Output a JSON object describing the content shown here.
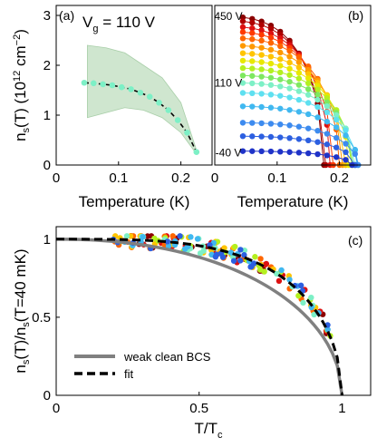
{
  "chart_data": [
    {
      "panel_label": "(a)",
      "type": "line",
      "annotation": {
        "prefix": "V",
        "sub": "g",
        "suffix": " = 110 V"
      },
      "xlabel": "Temperature (K)",
      "ylabel": {
        "main": "n",
        "sub": "s",
        "mid": "(T) (10",
        "sup": "12",
        "end": " cm",
        "sup2": "−2",
        "close": ")"
      },
      "xlim": [
        0,
        0.25
      ],
      "ylim": [
        0,
        3.2
      ],
      "xticks": [
        0,
        0.1,
        0.2
      ],
      "xtick_labels": [
        "0",
        "0.1",
        "0.2"
      ],
      "yticks": [
        0,
        1,
        2,
        3
      ],
      "ytick_labels": [
        "0",
        "1",
        "2",
        "3"
      ],
      "band": {
        "x": [
          0.05,
          0.08,
          0.11,
          0.14,
          0.17,
          0.2,
          0.225
        ],
        "upper": [
          2.4,
          2.35,
          2.25,
          2.0,
          1.75,
          1.25,
          0.3
        ],
        "lower": [
          0.95,
          1.05,
          1.15,
          1.1,
          0.95,
          0.65,
          0.22
        ],
        "color": "#cfe6cf"
      },
      "series": [
        {
          "x": [
            0.045,
            0.06,
            0.075,
            0.09,
            0.105,
            0.12,
            0.135,
            0.15,
            0.165,
            0.18,
            0.195,
            0.21,
            0.225
          ],
          "y": [
            1.65,
            1.64,
            1.62,
            1.6,
            1.56,
            1.52,
            1.45,
            1.37,
            1.25,
            1.1,
            0.9,
            0.65,
            0.26
          ],
          "color": "#7df0c6"
        }
      ],
      "fit": {
        "color": "#000000",
        "style": "dashed"
      }
    },
    {
      "panel_label": "(b)",
      "type": "line",
      "xlabel": "Temperature (K)",
      "xlim": [
        0,
        0.25
      ],
      "ylim": [
        0,
        3.2
      ],
      "xticks": [
        0,
        0.1,
        0.2
      ],
      "xtick_labels": [
        "0",
        "0.1",
        "0.2"
      ],
      "gate_labels": [
        {
          "text": "450 V",
          "y": 2.98
        },
        {
          "text": "110 V",
          "y": 1.65
        },
        {
          "text": "-40 V",
          "y": 0.25
        }
      ],
      "series": [
        {
          "color": "#8b0000",
          "y0": 2.98,
          "tc": 0.175
        },
        {
          "color": "#b00000",
          "y0": 2.9,
          "tc": 0.178
        },
        {
          "color": "#dd1010",
          "y0": 2.78,
          "tc": 0.185
        },
        {
          "color": "#ff3a00",
          "y0": 2.68,
          "tc": 0.19
        },
        {
          "color": "#ff6600",
          "y0": 2.55,
          "tc": 0.2
        },
        {
          "color": "#ff9900",
          "y0": 2.4,
          "tc": 0.205
        },
        {
          "color": "#ffc400",
          "y0": 2.25,
          "tc": 0.21
        },
        {
          "color": "#e8e800",
          "y0": 2.1,
          "tc": 0.215
        },
        {
          "color": "#b4f020",
          "y0": 1.95,
          "tc": 0.22
        },
        {
          "color": "#7ee860",
          "y0": 1.8,
          "tc": 0.222
        },
        {
          "color": "#7df0c6",
          "y0": 1.65,
          "tc": 0.225
        },
        {
          "color": "#5ee0f0",
          "y0": 1.45,
          "tc": 0.228
        },
        {
          "color": "#40b8f0",
          "y0": 1.18,
          "tc": 0.23
        },
        {
          "color": "#3d8bef",
          "y0": 0.85,
          "tc": 0.23
        },
        {
          "color": "#2c5fe0",
          "y0": 0.58,
          "tc": 0.225
        },
        {
          "color": "#1f33c8",
          "y0": 0.28,
          "tc": 0.22
        }
      ],
      "x_samples": [
        0.045,
        0.06,
        0.075,
        0.09,
        0.105,
        0.12,
        0.135,
        0.15,
        0.165,
        0.18,
        0.195,
        0.21,
        0.225
      ]
    },
    {
      "panel_label": "(c)",
      "type": "scatter",
      "xlabel": {
        "main": "T/T",
        "sub": "c"
      },
      "ylabel": {
        "a": "n",
        "asub": "s",
        "b": "(T)/n",
        "bsub": "s",
        "c": "(T=40 mK)"
      },
      "xlim": [
        0,
        1.1
      ],
      "ylim": [
        0,
        1.08
      ],
      "xticks": [
        0,
        0.5,
        1
      ],
      "xtick_labels": [
        "0",
        "0.5",
        "1"
      ],
      "yticks": [
        0,
        0.5,
        1
      ],
      "ytick_labels": [
        "0",
        "0.5",
        "1"
      ],
      "legend": {
        "position": "bottom-left",
        "entries": [
          {
            "label": "weak clean BCS",
            "color": "#808080",
            "style": "solid"
          },
          {
            "label": "fit",
            "color": "#000000",
            "style": "dashed"
          }
        ]
      },
      "scatter_colors": [
        "#8b0000",
        "#dd1010",
        "#ff6600",
        "#ffc400",
        "#b4f020",
        "#7df0c6",
        "#40b8f0",
        "#2c5fe0"
      ]
    }
  ]
}
